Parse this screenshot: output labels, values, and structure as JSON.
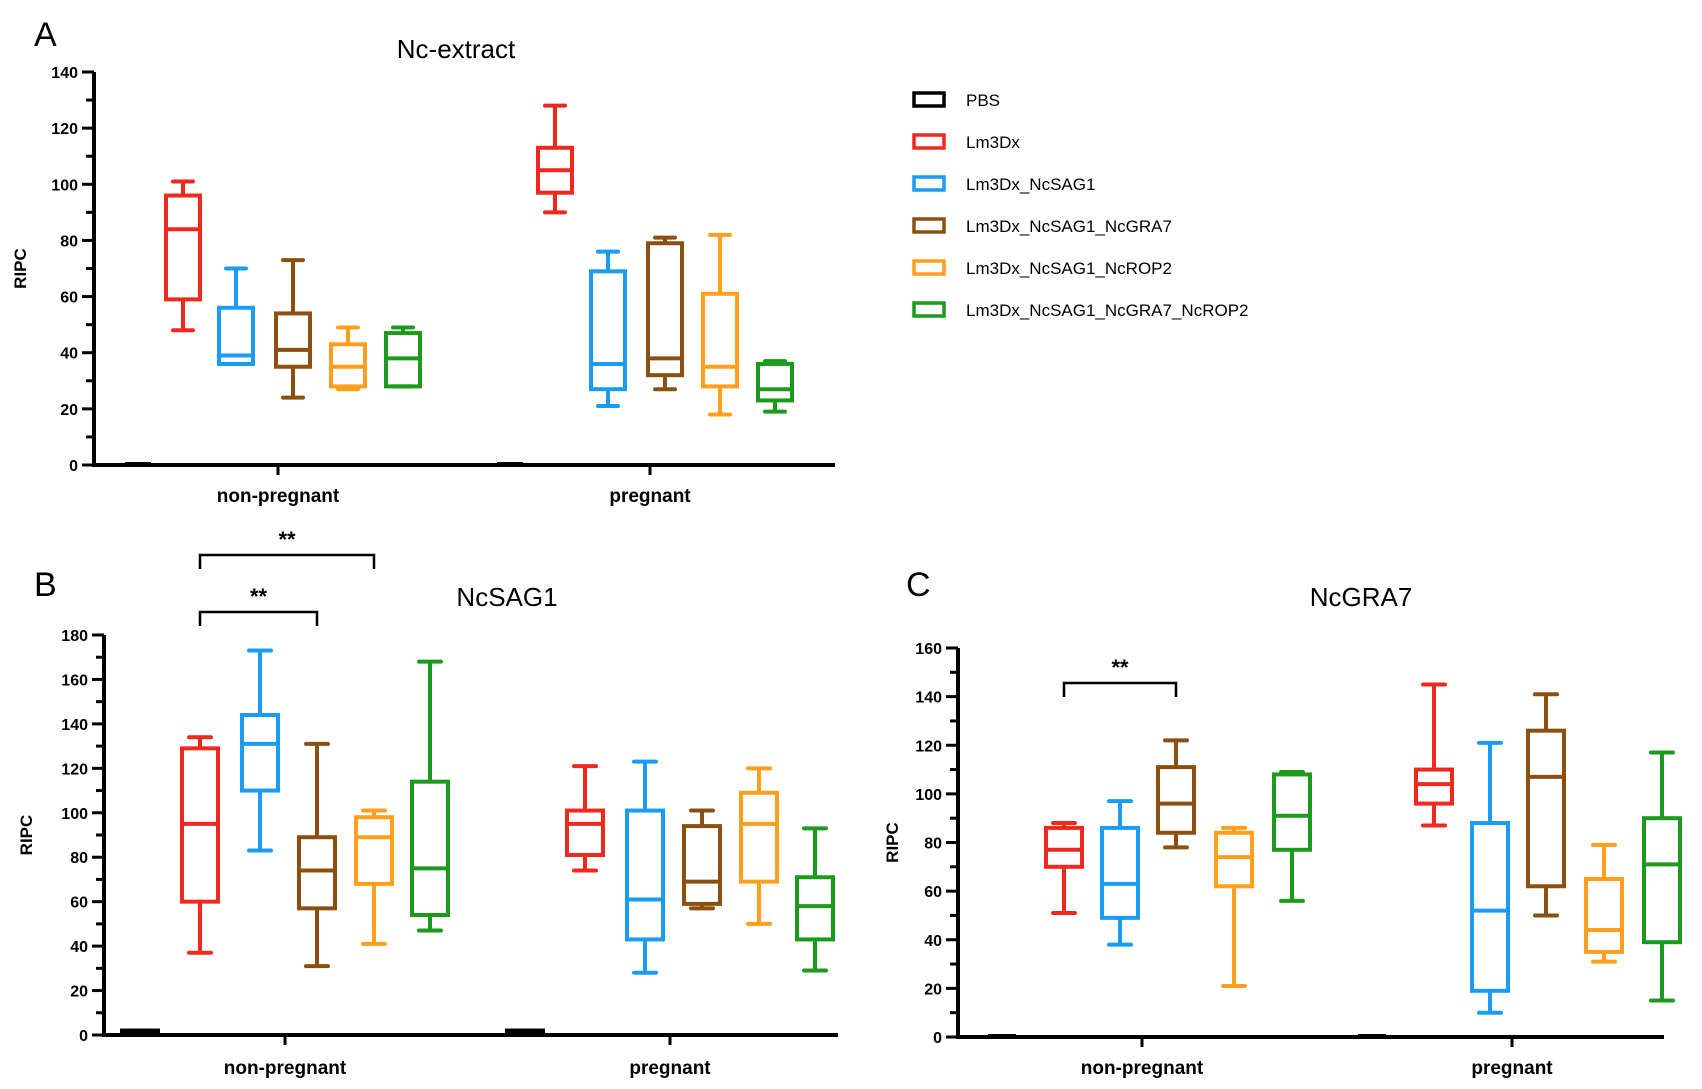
{
  "legend": {
    "entries": [
      {
        "name": "PBS",
        "color": "#000000"
      },
      {
        "name": "Lm3Dx",
        "color": "#f0281e"
      },
      {
        "name": "Lm3Dx_NcSAG1",
        "color": "#1a9cf2"
      },
      {
        "name": "Lm3Dx_NcSAG1_NcGRA7",
        "color": "#8b5010"
      },
      {
        "name": "Lm3Dx_NcSAG1_NcROP2",
        "color": "#ff9f1c"
      },
      {
        "name": "Lm3Dx_NcSAG1_NcGRA7_NcROP2",
        "color": "#1c9a1c"
      }
    ]
  },
  "chart_data": [
    {
      "panel": "A",
      "type": "box",
      "title": "Nc-extract",
      "ylabel": "RIPC",
      "ylim": [
        0,
        140
      ],
      "ytick_step": 20,
      "categories": [
        "non-pregnant",
        "pregnant"
      ],
      "series": [
        {
          "name": "PBS",
          "boxes": [
            [
              0,
              0,
              0,
              0,
              0
            ],
            [
              0,
              0,
              0,
              0,
              0
            ]
          ]
        },
        {
          "name": "Lm3Dx",
          "boxes": [
            [
              48,
              59,
              84,
              96,
              101
            ],
            [
              90,
              97,
              105,
              113,
              128
            ]
          ]
        },
        {
          "name": "Lm3Dx_NcSAG1",
          "boxes": [
            [
              36,
              36,
              39,
              56,
              70
            ],
            [
              21,
              27,
              36,
              69,
              76
            ]
          ]
        },
        {
          "name": "Lm3Dx_NcSAG1_NcGRA7",
          "boxes": [
            [
              24,
              35,
              41,
              54,
              73
            ],
            [
              27,
              32,
              38,
              79,
              81
            ]
          ]
        },
        {
          "name": "Lm3Dx_NcSAG1_NcROP2",
          "boxes": [
            [
              27,
              28,
              35,
              43,
              49
            ],
            [
              18,
              28,
              35,
              61,
              82
            ]
          ]
        },
        {
          "name": "Lm3Dx_NcSAG1_NcGRA7_NcROP2",
          "boxes": [
            [
              28,
              28,
              38,
              47,
              49
            ],
            [
              19,
              23,
              27,
              36,
              37
            ]
          ]
        }
      ],
      "significance": []
    },
    {
      "panel": "B",
      "type": "box",
      "title": "NcSAG1",
      "ylabel": "RIPC",
      "ylim": [
        0,
        180
      ],
      "ytick_step": 20,
      "categories": [
        "non-pregnant",
        "pregnant"
      ],
      "series": [
        {
          "name": "PBS",
          "boxes": [
            [
              0,
              0,
              1,
              2,
              2
            ],
            [
              0,
              0,
              1,
              2,
              2
            ]
          ]
        },
        {
          "name": "Lm3Dx",
          "boxes": [
            [
              37,
              60,
              95,
              129,
              134
            ],
            [
              74,
              81,
              95,
              101,
              121
            ]
          ]
        },
        {
          "name": "Lm3Dx_NcSAG1",
          "boxes": [
            [
              83,
              110,
              131,
              144,
              173
            ],
            [
              28,
              43,
              61,
              101,
              123
            ]
          ]
        },
        {
          "name": "Lm3Dx_NcSAG1_NcGRA7",
          "boxes": [
            [
              31,
              57,
              74,
              89,
              131
            ],
            [
              57,
              59,
              69,
              94,
              101
            ]
          ]
        },
        {
          "name": "Lm3Dx_NcSAG1_NcROP2",
          "boxes": [
            [
              41,
              68,
              89,
              98,
              101
            ],
            [
              50,
              69,
              95,
              109,
              120
            ]
          ]
        },
        {
          "name": "Lm3Dx_NcSAG1_NcGRA7_NcROP2",
          "boxes": [
            [
              47,
              54,
              75,
              114,
              168
            ],
            [
              29,
              43,
              58,
              71,
              93
            ]
          ]
        }
      ],
      "significance": [
        {
          "group": 0,
          "from": 1,
          "to": 3,
          "label": "**",
          "level": 0
        },
        {
          "group": 0,
          "from": 1,
          "to": 4,
          "label": "**",
          "level": 1
        }
      ]
    },
    {
      "panel": "C",
      "type": "box",
      "title": "NcGRA7",
      "ylabel": "RIPC",
      "ylim": [
        0,
        160
      ],
      "ytick_step": 20,
      "categories": [
        "non-pregnant",
        "pregnant"
      ],
      "series": [
        {
          "name": "PBS",
          "boxes": [
            [
              0,
              0,
              0,
              0,
              0
            ],
            [
              0,
              0,
              0,
              0,
              0
            ]
          ]
        },
        {
          "name": "Lm3Dx",
          "boxes": [
            [
              51,
              70,
              77,
              86,
              88
            ],
            [
              87,
              96,
              104,
              110,
              145
            ]
          ]
        },
        {
          "name": "Lm3Dx_NcSAG1",
          "boxes": [
            [
              38,
              49,
              63,
              86,
              97
            ],
            [
              10,
              19,
              52,
              88,
              121
            ]
          ]
        },
        {
          "name": "Lm3Dx_NcSAG1_NcGRA7",
          "boxes": [
            [
              78,
              84,
              96,
              111,
              122
            ],
            [
              50,
              62,
              107,
              126,
              141
            ]
          ]
        },
        {
          "name": "Lm3Dx_NcSAG1_NcROP2",
          "boxes": [
            [
              21,
              62,
              74,
              84,
              86
            ],
            [
              31,
              35,
              44,
              65,
              79
            ]
          ]
        },
        {
          "name": "Lm3Dx_NcSAG1_NcGRA7_NcROP2",
          "boxes": [
            [
              56,
              77,
              91,
              108,
              109
            ],
            [
              15,
              39,
              71,
              90,
              117
            ]
          ]
        }
      ],
      "significance": [
        {
          "group": 0,
          "from": 1,
          "to": 3,
          "label": "**",
          "level": 0
        }
      ]
    }
  ]
}
